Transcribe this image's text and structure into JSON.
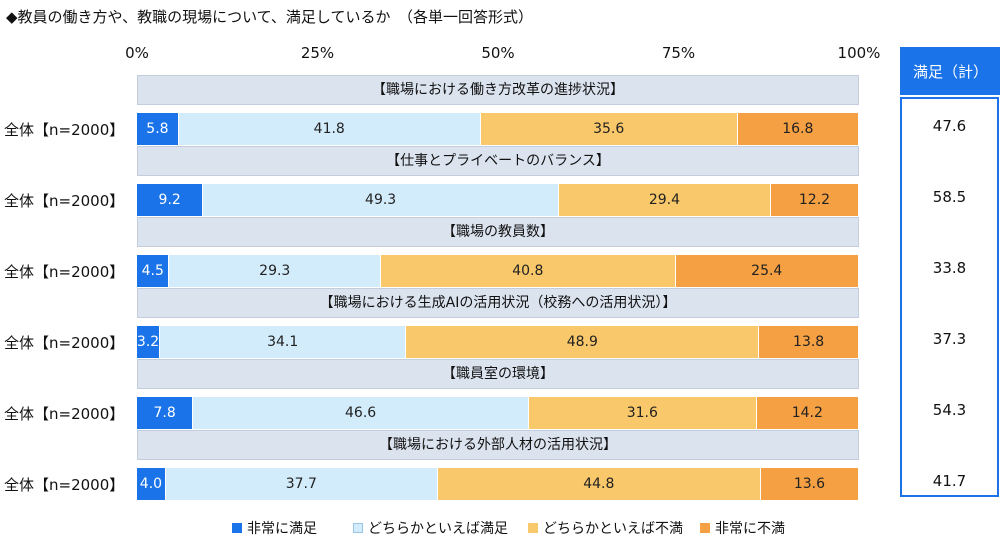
{
  "title": "◆教員の働き方や、教職の現場について、満足しているか　（各単一回答形式）",
  "chart_data": {
    "type": "bar",
    "orientation": "horizontal-stacked-100",
    "ticks": [
      "0%",
      "25%",
      "50%",
      "75%",
      "100%"
    ],
    "xlim": [
      0,
      100
    ],
    "series": [
      {
        "name": "非常に満足",
        "color": "#1a73e8"
      },
      {
        "name": "どちらかといえば満足",
        "color": "#d3ecfb"
      },
      {
        "name": "どちらかといえば不満",
        "color": "#f9c86a"
      },
      {
        "name": "非常に不満",
        "color": "#f5a042"
      }
    ],
    "sat_header": "満足（計）",
    "groups": [
      {
        "title": "【職場における働き方改革の進捗状況】",
        "label": "全体【n=2000】",
        "values": [
          5.8,
          41.8,
          35.6,
          16.8
        ],
        "satisfied_total": "47.6"
      },
      {
        "title": "【仕事とプライベートのバランス】",
        "label": "全体【n=2000】",
        "values": [
          9.2,
          49.3,
          29.4,
          12.2
        ],
        "satisfied_total": "58.5"
      },
      {
        "title": "【職場の教員数】",
        "label": "全体【n=2000】",
        "values": [
          4.5,
          29.3,
          40.8,
          25.4
        ],
        "satisfied_total": "33.8"
      },
      {
        "title": "【職場における生成AIの活用状況（校務への活用状況）】",
        "label": "全体【n=2000】",
        "values": [
          3.2,
          34.1,
          48.9,
          13.8
        ],
        "satisfied_total": "37.3"
      },
      {
        "title": "【職員室の環境】",
        "label": "全体【n=2000】",
        "values": [
          7.8,
          46.6,
          31.6,
          14.2
        ],
        "satisfied_total": "54.3"
      },
      {
        "title": "【職場における外部人材の活用状況】",
        "label": "全体【n=2000】",
        "values": [
          4.0,
          37.7,
          44.8,
          13.6
        ],
        "satisfied_total": "41.7"
      }
    ]
  }
}
